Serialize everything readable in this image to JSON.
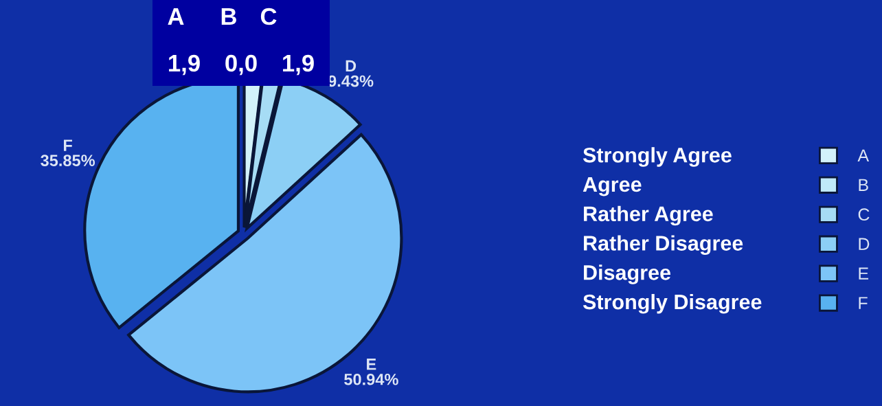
{
  "chart_data": {
    "type": "pie",
    "categories": [
      "A",
      "B",
      "C",
      "D",
      "E",
      "F"
    ],
    "values": [
      1.89,
      0.0,
      1.89,
      9.43,
      50.94,
      35.85
    ],
    "value_labels": [
      null,
      null,
      null,
      "9.43%",
      "50.94%",
      "35.85%"
    ],
    "colors": [
      "#d2f2fa",
      "#bfe9f8",
      "#a6dcf5",
      "#8ccff5",
      "#7cc4f7",
      "#58b2f0"
    ],
    "legend": "right",
    "annotations": [
      "A",
      "B",
      "C",
      "1,9",
      "0,0",
      "1,9",
      "Strongly Agree",
      "Agree",
      "Rather Agree",
      "Rather Disagree",
      "Disagree",
      "Strongly Disagree"
    ]
  }
}
